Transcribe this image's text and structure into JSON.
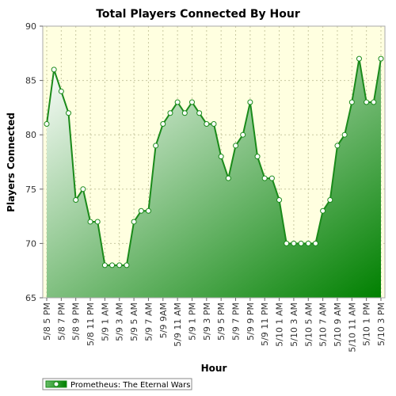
{
  "chart_data": {
    "type": "area",
    "title": "Total Players Connected By Hour",
    "xlabel": "Hour",
    "ylabel": "Players Connected",
    "ylim": [
      65,
      90
    ],
    "yticks": [
      65,
      70,
      75,
      80,
      85,
      90
    ],
    "grid": true,
    "legend_position": "bottom-left",
    "x": [
      "5/8 5 PM",
      "5/8 6 PM",
      "5/8 7 PM",
      "5/8 8 PM",
      "5/8 9 PM",
      "5/8 10 PM",
      "5/8 11 PM",
      "5/9 12 AM",
      "5/9 1 AM",
      "5/9 2 AM",
      "5/9 3 AM",
      "5/9 4 AM",
      "5/9 5 AM",
      "5/9 6 AM",
      "5/9 7 AM",
      "5/9 8 AM",
      "5/9 9 AM",
      "5/9 10 AM",
      "5/9 11 AM",
      "5/9 12 PM",
      "5/9 1 PM",
      "5/9 2 PM",
      "5/9 3 PM",
      "5/9 4 PM",
      "5/9 5 PM",
      "5/9 6 PM",
      "5/9 7 PM",
      "5/9 8 PM",
      "5/9 9 PM",
      "5/9 10 PM",
      "5/9 11 PM",
      "5/10 12 AM",
      "5/10 1 AM",
      "5/10 2 AM",
      "5/10 3 AM",
      "5/10 4 AM",
      "5/10 5 AM",
      "5/10 6 AM",
      "5/10 7 AM",
      "5/10 8 AM",
      "5/10 9 AM",
      "5/10 10 AM",
      "5/10 11 AM",
      "5/10 12 PM",
      "5/10 1 PM",
      "5/10 2 PM",
      "5/10 3 PM"
    ],
    "x_tick_labels": [
      "5/8 5 PM",
      "5/8 7 PM",
      "5/8 9 PM",
      "5/8 11 PM",
      "5/9 1 AM",
      "5/9 3 AM",
      "5/9 5 AM",
      "5/9 7 AM",
      "5/9 9AM",
      "5/9 11 AM",
      "5/9 1 PM",
      "5/9 3 PM",
      "5/9 5 PM",
      "5/9 7 PM",
      "5/9 9 PM",
      "5/9 11 PM",
      "5/10 1 AM",
      "5/10 3 AM",
      "5/10 5 AM",
      "5/10 7 AM",
      "5/10 9 AM",
      "5/10 11 AM",
      "5/10 1 PM",
      "5/10 3 PM"
    ],
    "series": [
      {
        "name": "Prometheus: The Eternal Wars",
        "values": [
          81,
          86,
          84,
          82,
          74,
          75,
          72,
          72,
          68,
          68,
          68,
          68,
          72,
          73,
          73,
          79,
          81,
          82,
          83,
          82,
          83,
          82,
          81,
          81,
          78,
          76,
          79,
          80,
          83,
          78,
          76,
          76,
          74,
          70,
          70,
          70,
          70,
          70,
          73,
          74,
          79,
          80,
          83,
          87,
          83,
          83,
          87
        ]
      }
    ],
    "colors": {
      "background": "#ffffe0",
      "line": "#1a8a1a",
      "fill_dark": "#008000",
      "fill_light": "#ffffff",
      "grid": "#c8c8a0"
    }
  }
}
